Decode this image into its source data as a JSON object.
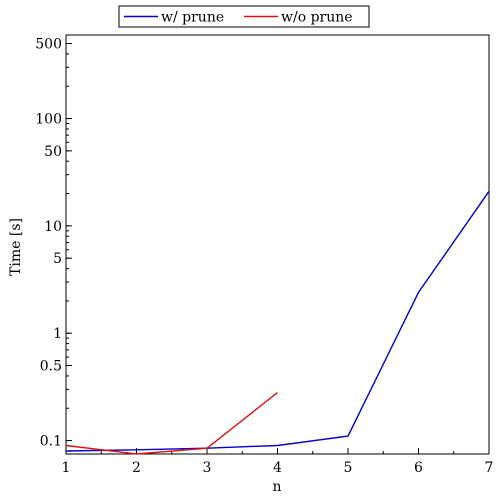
{
  "chart_data": {
    "type": "line",
    "xlabel": "n",
    "ylabel": "Time [s]",
    "x_scale": "linear",
    "y_scale": "log",
    "xlim": [
      1,
      7
    ],
    "ylim": [
      0.075,
      600
    ],
    "x_ticks": [
      1,
      2,
      3,
      4,
      5,
      6,
      7
    ],
    "x_tick_labels": [
      "1",
      "2",
      "3",
      "4",
      "5",
      "6",
      "7"
    ],
    "y_ticks": [
      0.1,
      0.5,
      1,
      5,
      10,
      50,
      100,
      500
    ],
    "y_tick_labels": [
      "0.1",
      "0.5",
      "1",
      "5",
      "10",
      "50",
      "100",
      "500"
    ],
    "grid": false,
    "legend_position": "top-center",
    "series": [
      {
        "name": "w/ prune",
        "color": "#0000cc",
        "x": [
          1,
          2,
          3,
          4,
          5,
          6,
          7
        ],
        "y": [
          0.08,
          0.082,
          0.085,
          0.09,
          0.11,
          2.4,
          21
        ]
      },
      {
        "name": "w/o prune",
        "color": "#dd1111",
        "x": [
          1,
          2,
          3,
          4
        ],
        "y": [
          0.09,
          0.075,
          0.085,
          0.28
        ]
      }
    ]
  }
}
